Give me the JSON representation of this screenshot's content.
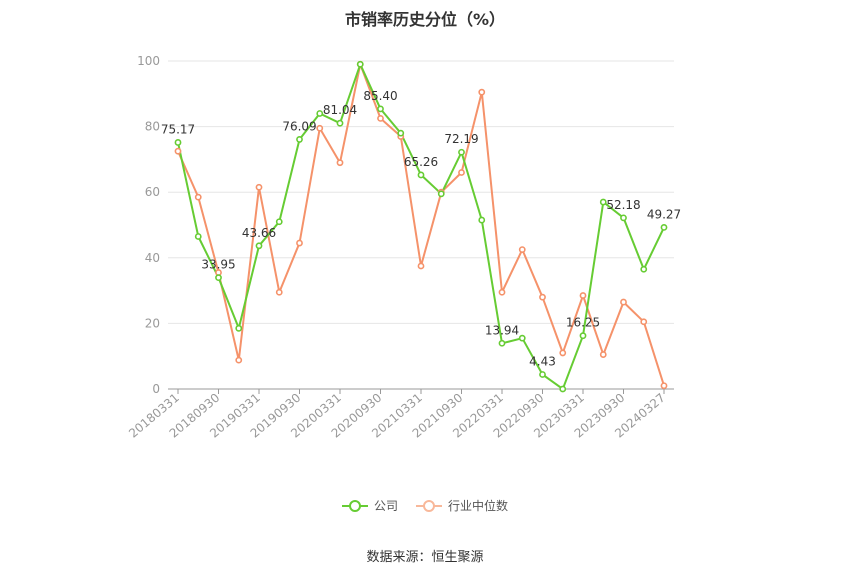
{
  "chart_data": {
    "type": "line",
    "title": "市销率历史分位（%）",
    "source": "数据来源：恒生聚源",
    "ylim": [
      0,
      100
    ],
    "yticks": [
      0,
      20,
      40,
      60,
      80,
      100
    ],
    "x_ticks": [
      "20180331",
      "20180930",
      "20190331",
      "20190930",
      "20200331",
      "20200930",
      "20210331",
      "20210930",
      "20220331",
      "20220930",
      "20230331",
      "20230930",
      "20240327"
    ],
    "x": [
      "20180331",
      "20180630",
      "20180930",
      "20181231",
      "20190331",
      "20190630",
      "20190930",
      "20191231",
      "20200331",
      "20200630",
      "20200930",
      "20201231",
      "20210331",
      "20210630",
      "20210930",
      "20211231",
      "20220331",
      "20220630",
      "20220930",
      "20221231",
      "20230331",
      "20230630",
      "20230930",
      "20231231",
      "20240327"
    ],
    "series": [
      {
        "name": "公司",
        "color": "#66cc33",
        "values": [
          75.17,
          46.5,
          33.95,
          18.5,
          43.66,
          51.0,
          76.09,
          84.0,
          81.04,
          99.0,
          85.4,
          78.0,
          65.26,
          59.5,
          72.19,
          51.5,
          13.94,
          15.5,
          4.43,
          0.0,
          16.25,
          57.0,
          52.18,
          36.5,
          49.27
        ]
      },
      {
        "name": "行业中位数",
        "color": "#f08c5a",
        "values": [
          72.5,
          58.5,
          35.5,
          8.8,
          61.5,
          29.5,
          44.5,
          79.5,
          69.0,
          99.0,
          82.5,
          77.0,
          37.5,
          60.0,
          66.0,
          90.5,
          29.5,
          42.5,
          28.0,
          11.0,
          28.5,
          10.5,
          26.5,
          20.5,
          1.0
        ]
      }
    ],
    "data_labels": [
      {
        "series": 0,
        "index": 0,
        "text": "75.17"
      },
      {
        "series": 0,
        "index": 2,
        "text": "33.95"
      },
      {
        "series": 0,
        "index": 4,
        "text": "43.66"
      },
      {
        "series": 0,
        "index": 6,
        "text": "76.09"
      },
      {
        "series": 0,
        "index": 8,
        "text": "81.04"
      },
      {
        "series": 0,
        "index": 10,
        "text": "85.40"
      },
      {
        "series": 0,
        "index": 12,
        "text": "65.26"
      },
      {
        "series": 0,
        "index": 14,
        "text": "72.19"
      },
      {
        "series": 0,
        "index": 16,
        "text": "13.94"
      },
      {
        "series": 0,
        "index": 18,
        "text": "4.43"
      },
      {
        "series": 0,
        "index": 20,
        "text": "16.25"
      },
      {
        "series": 0,
        "index": 22,
        "text": "52.18"
      },
      {
        "series": 0,
        "index": 24,
        "text": "49.27"
      }
    ],
    "grid": true,
    "legend_position": "bottom"
  }
}
